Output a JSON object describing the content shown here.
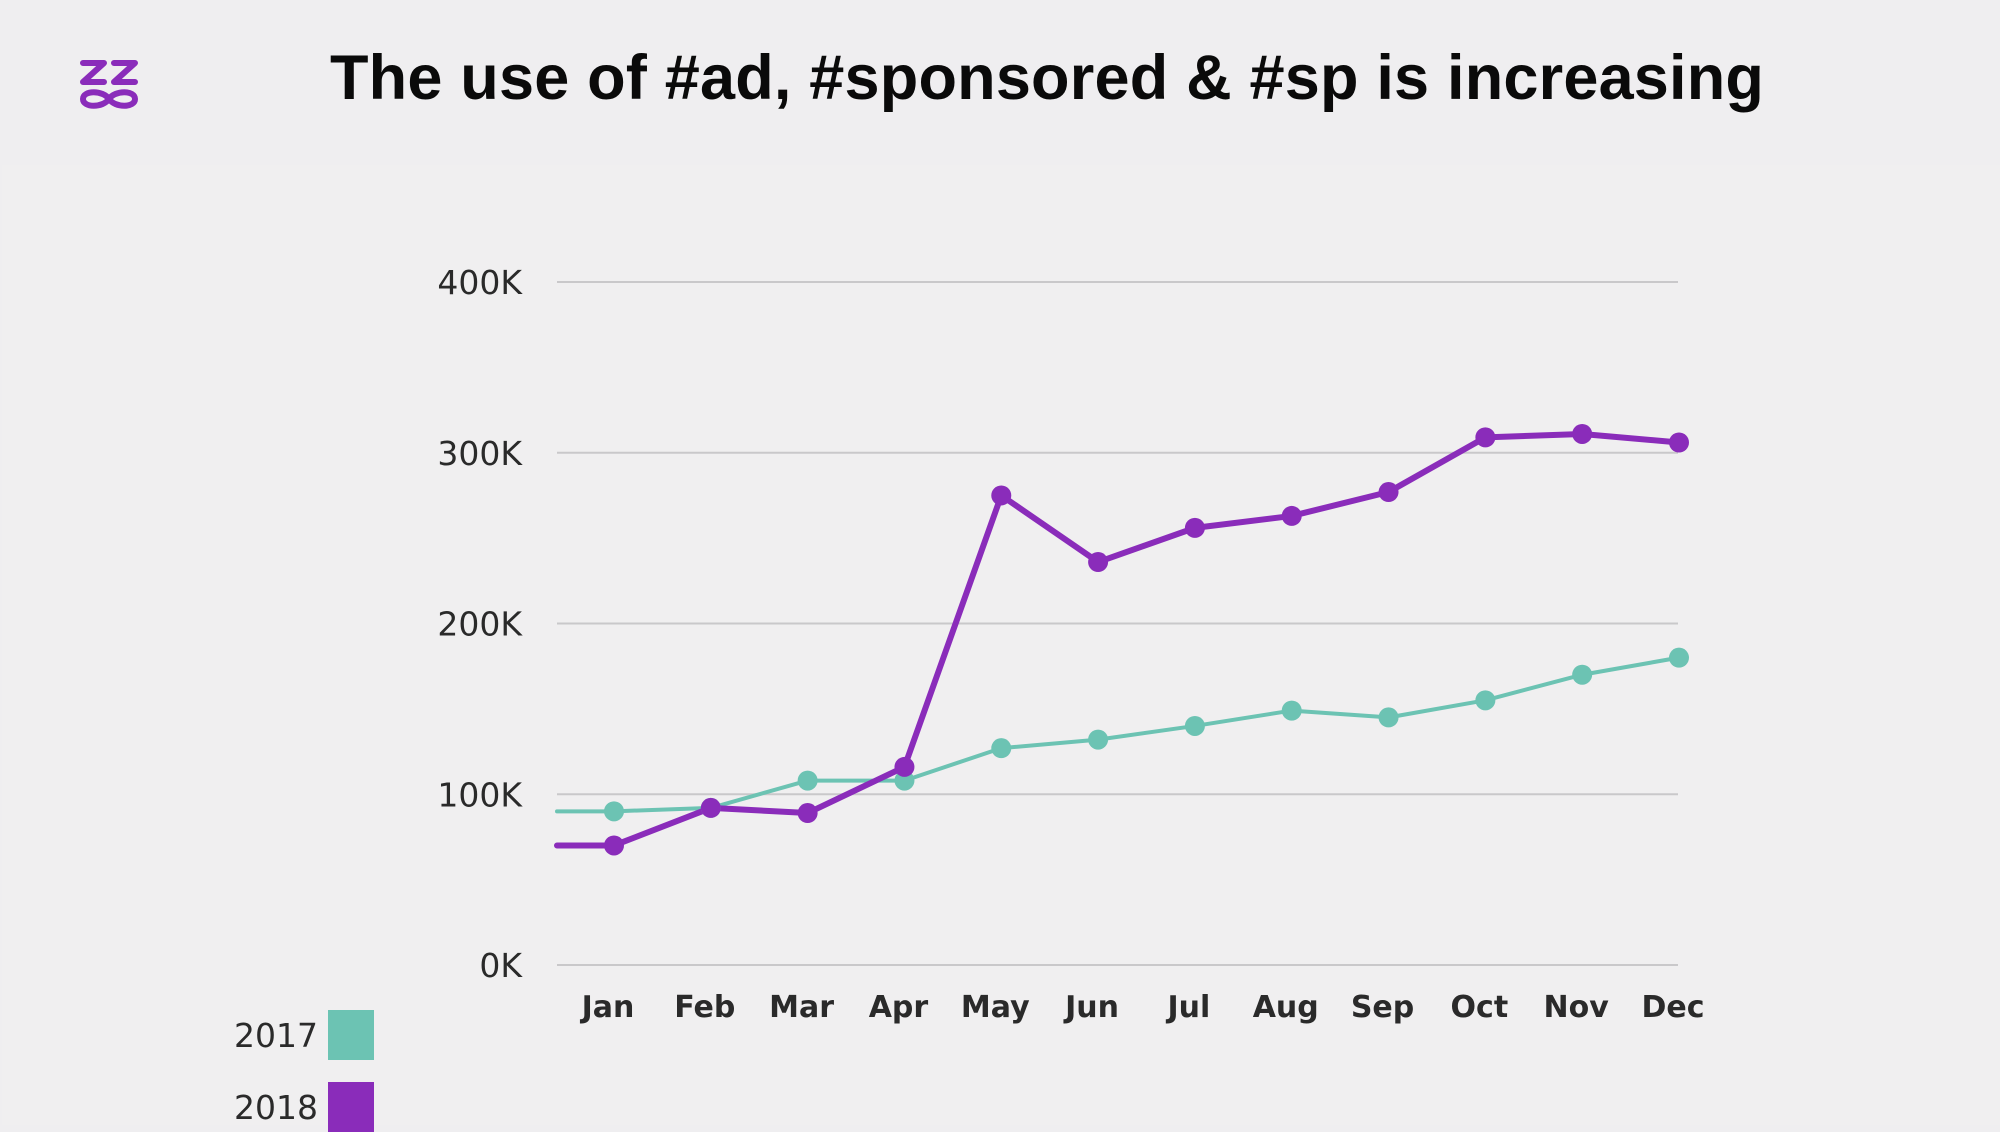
{
  "header": {
    "title": "The use of #ad, #sponsored & #sp is increasing",
    "logo_icon": "zz-infinity-logo-icon",
    "logo_color": "#8a2cba"
  },
  "chart_data": {
    "type": "line",
    "title": "The use of #ad, #sponsored & #sp is increasing",
    "xlabel": "",
    "ylabel": "",
    "categories": [
      "Jan",
      "Feb",
      "Mar",
      "Apr",
      "May",
      "Jun",
      "Jul",
      "Aug",
      "Sep",
      "Oct",
      "Nov",
      "Dec"
    ],
    "y_ticks": [
      "0K",
      "100K",
      "200K",
      "300K",
      "400K"
    ],
    "ylim": [
      0,
      400000
    ],
    "grid": true,
    "legend_position": "bottom-left",
    "series": [
      {
        "name": "2017",
        "color": "#6cc3b3",
        "values": [
          90000,
          92000,
          108000,
          108000,
          127000,
          132000,
          140000,
          149000,
          145000,
          155000,
          170000,
          180000
        ]
      },
      {
        "name": "2018",
        "color": "#8a2cba",
        "values": [
          70000,
          92000,
          89000,
          116000,
          275000,
          236000,
          256000,
          263000,
          277000,
          309000,
          311000,
          306000
        ]
      }
    ]
  }
}
